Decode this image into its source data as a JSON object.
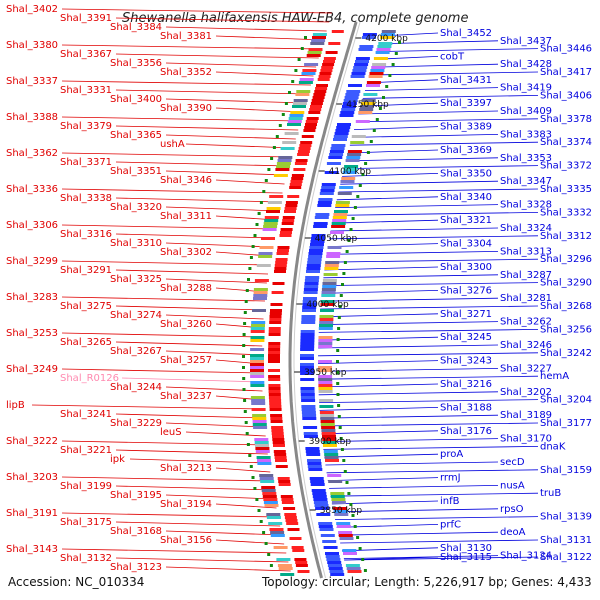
{
  "title": "Shewanella halifaxensis HAW-EB4, complete genome",
  "footer": {
    "accession": "Accession: NC_010334",
    "summary": "Topology: circular; Length: 5,226,917 bp; Genes: 4,433"
  },
  "colors": {
    "forward": "#e00000",
    "reverse": "#0000dd",
    "pseudo": "#ff8ab0",
    "axis": "#888888",
    "tick": "#118811"
  },
  "ticks": [
    "4200 kbp",
    "4150 kbp",
    "4100 kbp",
    "4050 kbp",
    "4000 kbp",
    "3950 kbp",
    "3900 kbp",
    "3850 kbp"
  ],
  "left_labels": [
    "Shal_3402",
    "Shal_3391",
    "Shal_3384",
    "Shal_3381",
    "Shal_3380",
    "Shal_3367",
    "Shal_3356",
    "Shal_3352",
    "Shal_3337",
    "Shal_3331",
    "Shal_3400",
    "Shal_3390",
    "Shal_3388",
    "Shal_3379",
    "Shal_3365",
    "ushA",
    "Shal_3362",
    "Shal_3371",
    "Shal_3351",
    "Shal_3346",
    "Shal_3336",
    "Shal_3338",
    "Shal_3320",
    "Shal_3311",
    "Shal_3306",
    "Shal_3316",
    "Shal_3310",
    "Shal_3302",
    "Shal_3299",
    "Shal_3291",
    "Shal_3325",
    "Shal_3288",
    "Shal_3283",
    "Shal_3275",
    "Shal_3274",
    "Shal_3260",
    "Shal_3253",
    "Shal_3265",
    "Shal_3267",
    "Shal_3257",
    "Shal_3249",
    "Shal_R0126",
    "Shal_3244",
    "Shal_3237",
    "lipB",
    "Shal_3241",
    "Shal_3229",
    "leuS",
    "Shal_3222",
    "Shal_3221",
    "ipk",
    "Shal_3213",
    "Shal_3203",
    "Shal_3199",
    "Shal_3195",
    "Shal_3194",
    "Shal_3191",
    "Shal_3175",
    "Shal_3168",
    "Shal_3156",
    "Shal_3143",
    "Shal_3132",
    "Shal_3123"
  ],
  "right_labels": [
    "Shal_3452",
    "Shal_3437",
    "Shal_3446",
    "cobT",
    "Shal_3428",
    "Shal_3417",
    "Shal_3431",
    "Shal_3419",
    "Shal_3406",
    "Shal_3397",
    "Shal_3409",
    "Shal_3378",
    "Shal_3389",
    "Shal_3383",
    "Shal_3374",
    "Shal_3369",
    "Shal_3353",
    "Shal_3372",
    "Shal_3350",
    "Shal_3347",
    "Shal_3335",
    "Shal_3340",
    "Shal_3328",
    "Shal_3332",
    "Shal_3321",
    "Shal_3324",
    "Shal_3312",
    "Shal_3304",
    "Shal_3313",
    "Shal_3296",
    "Shal_3300",
    "Shal_3287",
    "Shal_3290",
    "Shal_3276",
    "Shal_3281",
    "Shal_3268",
    "Shal_3271",
    "Shal_3262",
    "Shal_3256",
    "Shal_3245",
    "Shal_3246",
    "Shal_3242",
    "Shal_3243",
    "Shal_3227",
    "hemA",
    "Shal_3216",
    "Shal_3202",
    "Shal_3204",
    "Shal_3188",
    "Shal_3189",
    "Shal_3177",
    "Shal_3176",
    "Shal_3170",
    "dnaK",
    "proA",
    "secD",
    "Shal_3159",
    "rrmJ",
    "nusA",
    "truB",
    "infB",
    "rpsO",
    "Shal_3139",
    "prfC",
    "deoA",
    "Shal_3131",
    "Shal_3130",
    "Shal_3124",
    "Shal_3122",
    "Shal_3115"
  ]
}
